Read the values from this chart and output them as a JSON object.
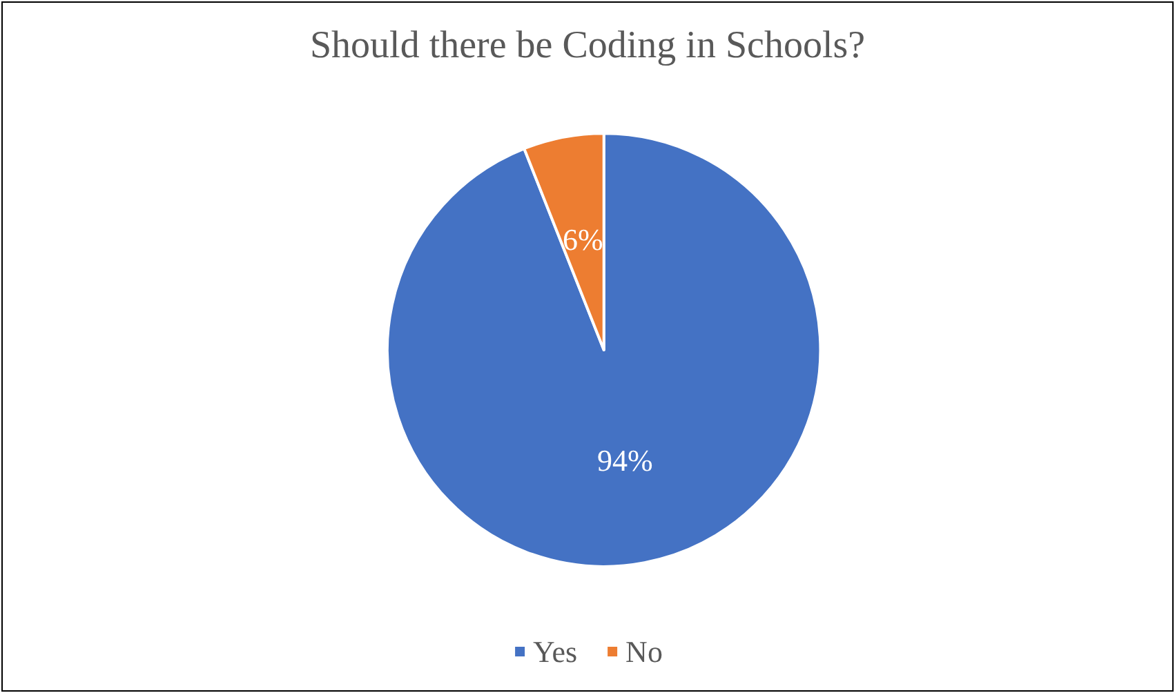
{
  "chart_data": {
    "type": "pie",
    "title": "Should there be Coding in Schools?",
    "categories": [
      "Yes",
      "No"
    ],
    "values": [
      94,
      6
    ],
    "colors": [
      "#4472c4",
      "#ed7d31"
    ],
    "value_labels": [
      "94%",
      "6%"
    ],
    "legend": "bottom"
  }
}
